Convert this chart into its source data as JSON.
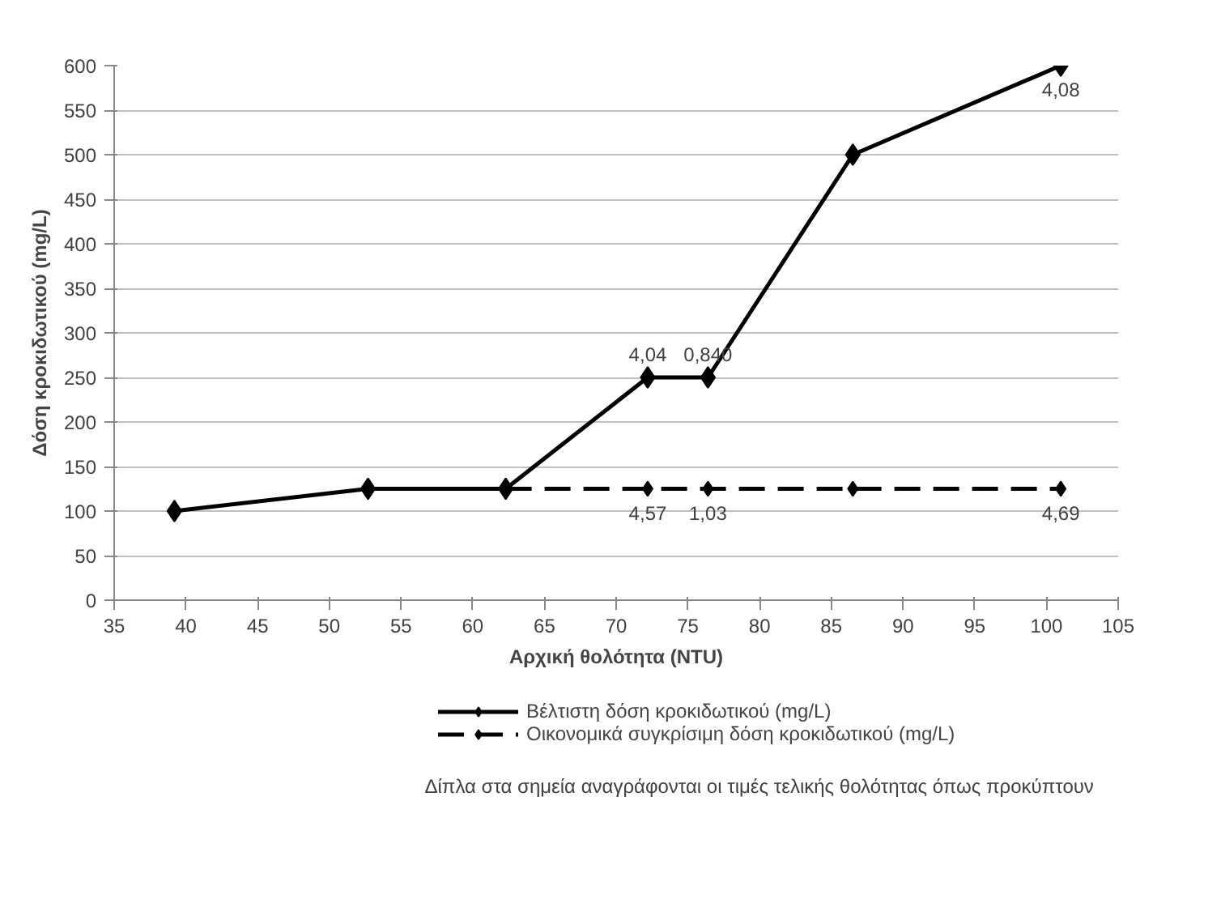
{
  "chart_data": {
    "type": "line",
    "xlabel": "Αρχική θολότητα (NTU)",
    "ylabel": "Δόση κροκιδωτικού (mg/L)",
    "xlim": [
      35,
      105
    ],
    "xticks": [
      35,
      40,
      45,
      50,
      55,
      60,
      65,
      70,
      75,
      80,
      85,
      90,
      95,
      100,
      105
    ],
    "ylim": [
      0,
      600
    ],
    "yticks": [
      0,
      50,
      100,
      150,
      200,
      250,
      300,
      350,
      400,
      450,
      500,
      550,
      600
    ],
    "grid": "y",
    "legend": "bottom",
    "marker": "diamond",
    "series": [
      {
        "name": "Βέλτιστη δόση κροκιδωτικού (mg/L)",
        "color": "#000000",
        "line_style": "solid",
        "x": [
          39.2,
          52.7,
          62.3,
          72.2,
          76.4,
          86.5,
          101
        ],
        "values": [
          100,
          125,
          125,
          250,
          250,
          500,
          600
        ]
      },
      {
        "name": "Οικονομικά συγκρίσιμη δόση κροκιδωτικού (mg/L)",
        "color": "#000000",
        "line_style": "dashed",
        "x": [
          62.3,
          72.2,
          76.4,
          86.5,
          101
        ],
        "values": [
          125,
          125,
          125,
          125,
          125
        ]
      }
    ],
    "annotations": [
      {
        "text": "4,04",
        "x": 72.2,
        "y": 250
      },
      {
        "text": "0,840",
        "x": 76.4,
        "y": 250
      },
      {
        "text": "4,08",
        "x": 101,
        "y": 600
      },
      {
        "text": "4,57",
        "x": 72.2,
        "y": 125
      },
      {
        "text": "1,03",
        "x": 76.4,
        "y": 125
      },
      {
        "text": "4,69",
        "x": 101,
        "y": 125
      },
      "Δίπλα στα σημεία αναγράφονται οι τιμές τελικής θολότητας  όπως προκύπτουν"
    ]
  }
}
